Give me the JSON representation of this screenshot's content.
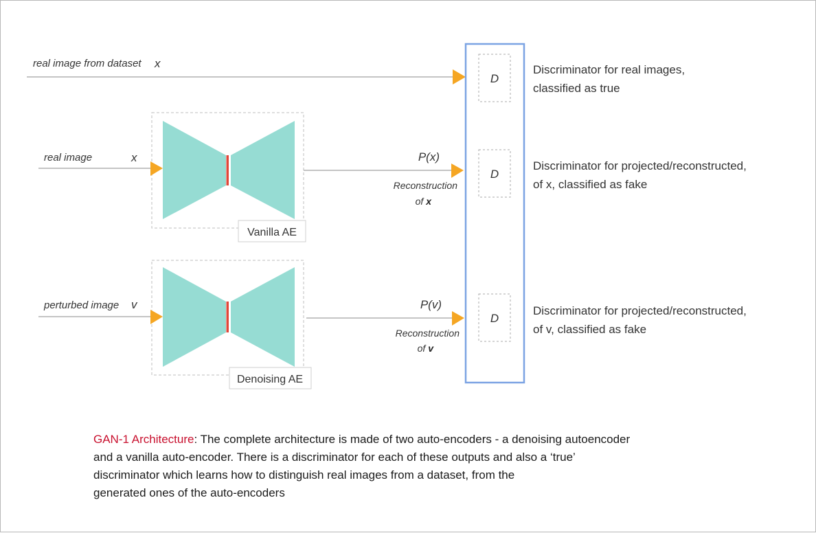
{
  "inputs": {
    "real_from_dataset": "real image from dataset",
    "real_from_dataset_var": "x",
    "real": "real image",
    "real_var": "x",
    "perturbed": "perturbed image",
    "perturbed_var": "v"
  },
  "autoencoders": {
    "vanilla": "Vanilla AE",
    "denoising": "Denoising AE"
  },
  "outputs": {
    "px": "P(x)",
    "px_recon_1": "Reconstruction",
    "px_recon_2_prefix": "of ",
    "px_recon_2_var": "x",
    "pv": "P(v)",
    "pv_recon_1": "Reconstruction",
    "pv_recon_2_prefix": "of ",
    "pv_recon_2_var": "v"
  },
  "discriminators": {
    "label": "D",
    "real_desc_1": "Discriminator for real images,",
    "real_desc_2": "classified as true",
    "px_desc_1": "Discriminator for projected/reconstructed,",
    "px_desc_2": "of x, classified as fake",
    "pv_desc_1": "Discriminator for projected/reconstructed,",
    "pv_desc_2": "of v, classified as fake"
  },
  "caption": {
    "highlight": "GAN-1 Architecture",
    "line1": ": The complete architecture is made of two auto-encoders - a denoising autoencoder",
    "line2": "and a vanilla auto-encoder. There is a discriminator for each of these outputs and also a ‘true’",
    "line3": "discriminator which learns how to distinguish real images from a dataset, from the",
    "line4": "generated ones of the auto-encoders"
  },
  "colors": {
    "autoencoder": "#96dcd3",
    "bottleneck": "#e0473a",
    "arrow": "#f5a623",
    "discriminator_group": "#7ba3e3",
    "caption_highlight": "#c8102e"
  }
}
